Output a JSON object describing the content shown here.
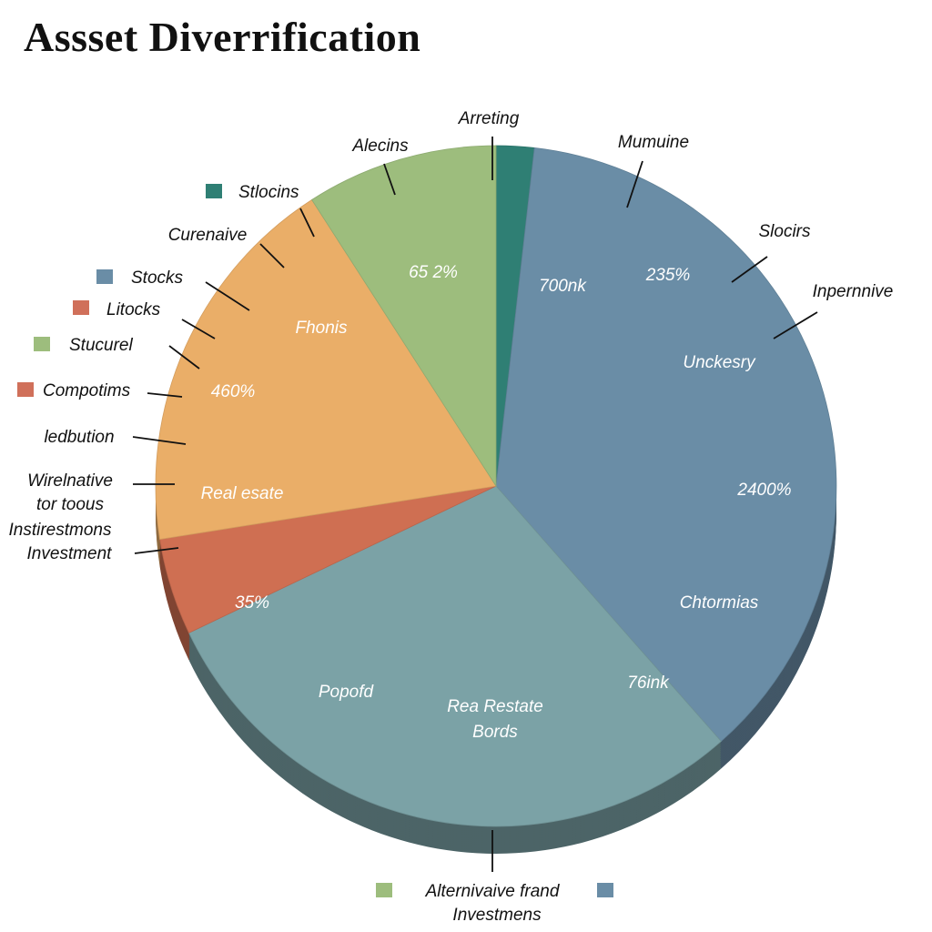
{
  "chart_data": {
    "type": "pie",
    "title": "Assset  Diverrification",
    "center": "",
    "slices": [
      {
        "color": "#2f7f74",
        "start": 0,
        "end": 1.8
      },
      {
        "color": "#6a8da6",
        "start": 1.8,
        "end": 38.5
      },
      {
        "color": "#7ba2a6",
        "start": 38.5,
        "end": 67.9
      },
      {
        "color": "#cf6f52",
        "start": 67.9,
        "end": 72.5
      },
      {
        "color": "#eaae68",
        "start": 72.5,
        "end": 90.9
      },
      {
        "color": "#9dbd7d",
        "start": 90.9,
        "end": 100
      }
    ],
    "slice_labels": [
      "65 2%",
      "700nk",
      "235%",
      "Unckesry",
      "2400%",
      "Chtormias",
      "76ink",
      "Rea Restate",
      "Bords",
      "Popofd",
      "35%",
      "Real esate",
      "460%",
      "Fhonis"
    ],
    "callouts": [
      "Arreting",
      "Mumuine",
      "Alecins",
      "Slocirs",
      "Inpernnive",
      "Curenaive",
      "ledbution",
      "Wirelnative",
      "tor toous",
      "Instirestmons",
      "Investment"
    ],
    "legend": [
      {
        "label": "Stlocins",
        "color": "#2f7f74"
      },
      {
        "label": "Stocks",
        "color": "#6a8da6"
      },
      {
        "label": "Litocks",
        "color": "#d0705a"
      },
      {
        "label": "Stucurel",
        "color": "#9dbd7d"
      },
      {
        "label": "Compotims",
        "color": "#d0705a"
      }
    ],
    "bottom_legend": {
      "lines": [
        "Alternivaive frand",
        "Investmens"
      ],
      "colors": [
        "#9dbd7d",
        "#6a8da6"
      ]
    }
  }
}
